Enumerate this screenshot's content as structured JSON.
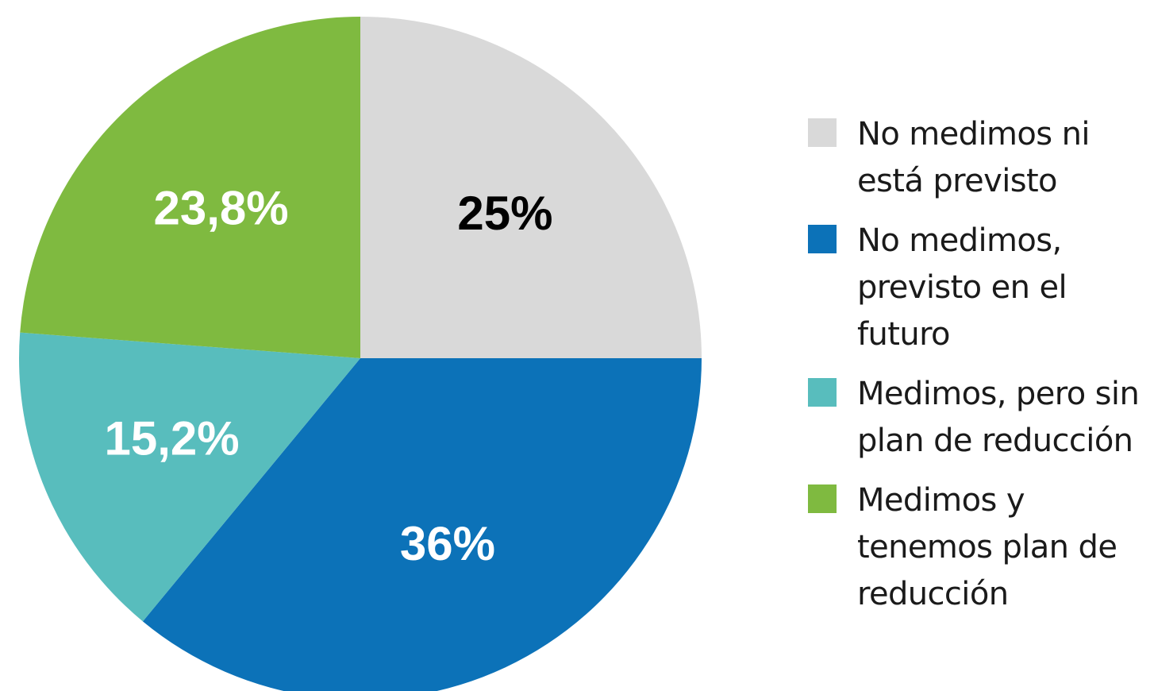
{
  "chart_data": {
    "type": "pie",
    "title": "",
    "legend_position": "right",
    "slices": [
      {
        "label": "No medimos ni está previsto",
        "value": 25,
        "value_label": "25%",
        "color": "#d9d9d9",
        "label_color": "#000000"
      },
      {
        "label": "No medimos, previsto en el futuro",
        "value": 36,
        "value_label": "36%",
        "color": "#0c72b8",
        "label_color": "#ffffff"
      },
      {
        "label": "Medimos, pero sin plan de reducción",
        "value": 15.2,
        "value_label": "15,2%",
        "color": "#58bdbd",
        "label_color": "#ffffff"
      },
      {
        "label": "Medimos y tenemos plan de reducción",
        "value": 23.8,
        "value_label": "23,8%",
        "color": "#7fba40",
        "label_color": "#ffffff"
      }
    ]
  },
  "legend": {
    "items": [
      {
        "lines": [
          "No medimos ni",
          "está previsto"
        ]
      },
      {
        "lines": [
          "No medimos,",
          "previsto en el",
          "futuro"
        ]
      },
      {
        "lines": [
          "Medimos, pero sin",
          "plan de reducción"
        ]
      },
      {
        "lines": [
          "Medimos y",
          "tenemos plan de",
          "reducción"
        ]
      }
    ]
  }
}
